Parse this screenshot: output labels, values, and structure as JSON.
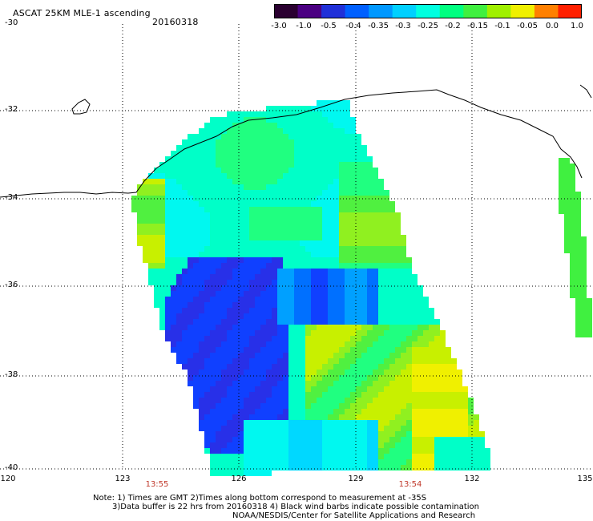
{
  "header": {
    "title": "ASCAT 25KM MLE-1 ascending",
    "date": "20160318"
  },
  "colorbar": {
    "labels": [
      "-3.0",
      "-1.0",
      "-0.5",
      "-0.4",
      "-0.35",
      "-0.3",
      "-0.25",
      "-0.2",
      "-0.15",
      "-0.1",
      "-0.05",
      "0.0",
      "1.0"
    ],
    "colors": [
      "#2a0030",
      "#4b0082",
      "#2030d8",
      "#0060ff",
      "#0098ff",
      "#00d0ff",
      "#00ffe0",
      "#00ff80",
      "#40f040",
      "#a0f000",
      "#f0f000",
      "#ff8000",
      "#ff2000"
    ]
  },
  "map": {
    "lat_labels": [
      "-30",
      "-32",
      "-34",
      "-36",
      "-38",
      "-40"
    ],
    "lon_labels": [
      "120",
      "123",
      "126",
      "129",
      "132",
      "135"
    ],
    "time_labels": [
      "13:55",
      "13:54"
    ],
    "grid_color": "#000000",
    "coast_color": "#000000"
  },
  "footer": {
    "line1": "Note: 1) Times are GMT 2)Times along bottom correspond to measurement at -35S",
    "line2": "3)Data buffer is 22 hrs from 20160318 4) Black wind barbs indicate possible contamination",
    "line3": "NOAA/NESDIS/Center for Satellite Applications and Research"
  }
}
